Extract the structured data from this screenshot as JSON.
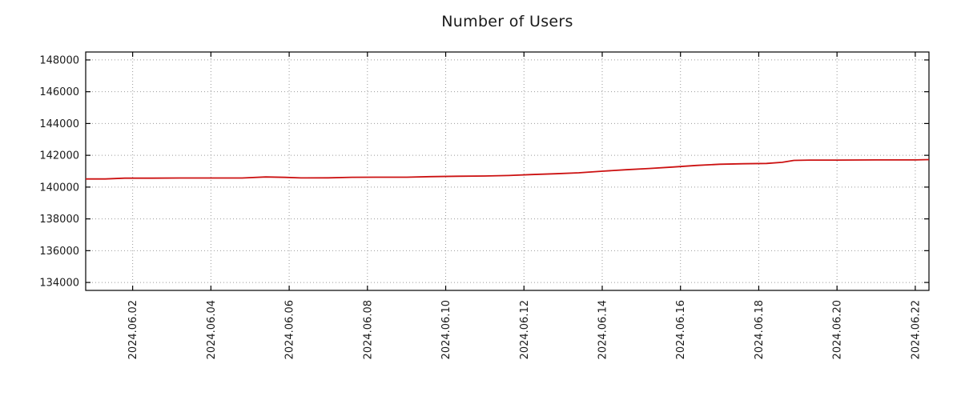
{
  "chart_data": {
    "type": "line",
    "title": "Number of Users",
    "xlabel": "",
    "ylabel": "",
    "grid": true,
    "legend": "none",
    "line_color": "#cc1111",
    "grid_color": "#999999",
    "axis_color": "#000000",
    "text_color": "#1a1a1a",
    "xlim": [
      -0.2,
      21.35
    ],
    "ylim": [
      133500,
      148500
    ],
    "y_ticks": [
      134000,
      136000,
      138000,
      140000,
      142000,
      144000,
      146000,
      148000
    ],
    "x_ticks": [
      {
        "day": 1,
        "label": "2024.06.02"
      },
      {
        "day": 3,
        "label": "2024.06.04"
      },
      {
        "day": 5,
        "label": "2024.06.06"
      },
      {
        "day": 7,
        "label": "2024.06.08"
      },
      {
        "day": 9,
        "label": "2024.06.10"
      },
      {
        "day": 11,
        "label": "2024.06.12"
      },
      {
        "day": 13,
        "label": "2024.06.14"
      },
      {
        "day": 15,
        "label": "2024.06.16"
      },
      {
        "day": 17,
        "label": "2024.06.18"
      },
      {
        "day": 19,
        "label": "2024.06.20"
      },
      {
        "day": 21,
        "label": "2024.06.22"
      }
    ],
    "points": [
      [
        -0.2,
        140510
      ],
      [
        0.3,
        140510
      ],
      [
        0.8,
        140560
      ],
      [
        1.5,
        140560
      ],
      [
        2.2,
        140570
      ],
      [
        3.0,
        140570
      ],
      [
        3.8,
        140570
      ],
      [
        4.4,
        140640
      ],
      [
        4.9,
        140610
      ],
      [
        5.3,
        140575
      ],
      [
        6.0,
        140580
      ],
      [
        6.6,
        140615
      ],
      [
        7.2,
        140620
      ],
      [
        8.0,
        140625
      ],
      [
        8.6,
        140660
      ],
      [
        9.3,
        140685
      ],
      [
        10.0,
        140700
      ],
      [
        10.6,
        140730
      ],
      [
        11.2,
        140790
      ],
      [
        11.8,
        140840
      ],
      [
        12.4,
        140900
      ],
      [
        13.0,
        141000
      ],
      [
        13.6,
        141090
      ],
      [
        14.2,
        141170
      ],
      [
        14.8,
        141260
      ],
      [
        15.4,
        141360
      ],
      [
        16.0,
        141440
      ],
      [
        16.6,
        141470
      ],
      [
        17.2,
        141490
      ],
      [
        17.6,
        141560
      ],
      [
        17.9,
        141680
      ],
      [
        18.3,
        141700
      ],
      [
        19.0,
        141700
      ],
      [
        20.0,
        141710
      ],
      [
        21.0,
        141710
      ],
      [
        21.35,
        141730
      ]
    ]
  }
}
